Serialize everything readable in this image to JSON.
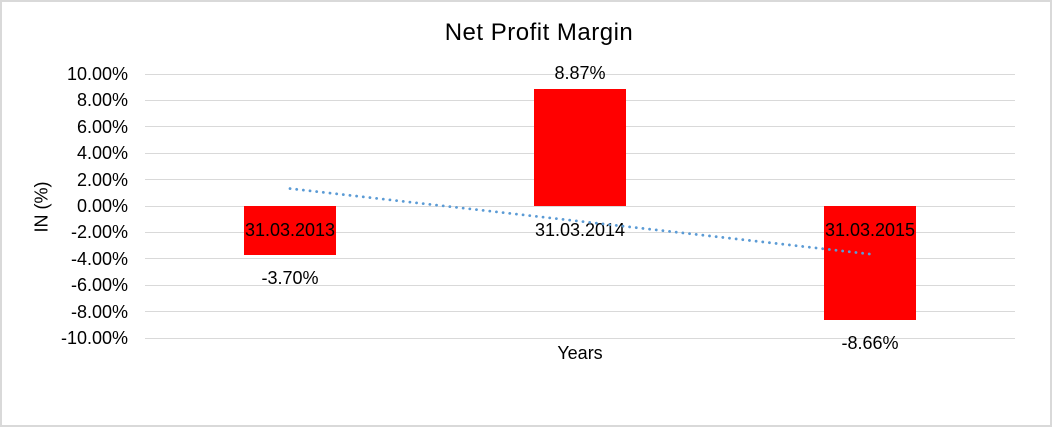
{
  "chart_data": {
    "type": "bar",
    "title": "Net Profit Margin",
    "xlabel": "Years",
    "ylabel": "IN (%)",
    "categories": [
      "31.03.2013",
      "31.03.2014",
      "31.03.2015"
    ],
    "values": [
      -3.7,
      8.87,
      -8.66
    ],
    "data_labels": [
      "-3.70%",
      "8.87%",
      "-8.66%"
    ],
    "ylim": [
      -10,
      10
    ],
    "ytick_step": 2,
    "ytick_labels": [
      "10.00%",
      "8.00%",
      "6.00%",
      "4.00%",
      "2.00%",
      "0.00%",
      "-2.00%",
      "-4.00%",
      "-6.00%",
      "-8.00%",
      "-10.00%"
    ],
    "legend": "none",
    "grid": "horizontal",
    "bar_color": "#FF0000",
    "gridline_color": "#D9D9D9",
    "frame_color": "#D9D9D9",
    "text_color": "#000000",
    "trendline": {
      "type": "linear",
      "style": "dotted",
      "color": "#5B9BD5",
      "start_pct": 1.32,
      "end_pct": -3.64
    }
  }
}
